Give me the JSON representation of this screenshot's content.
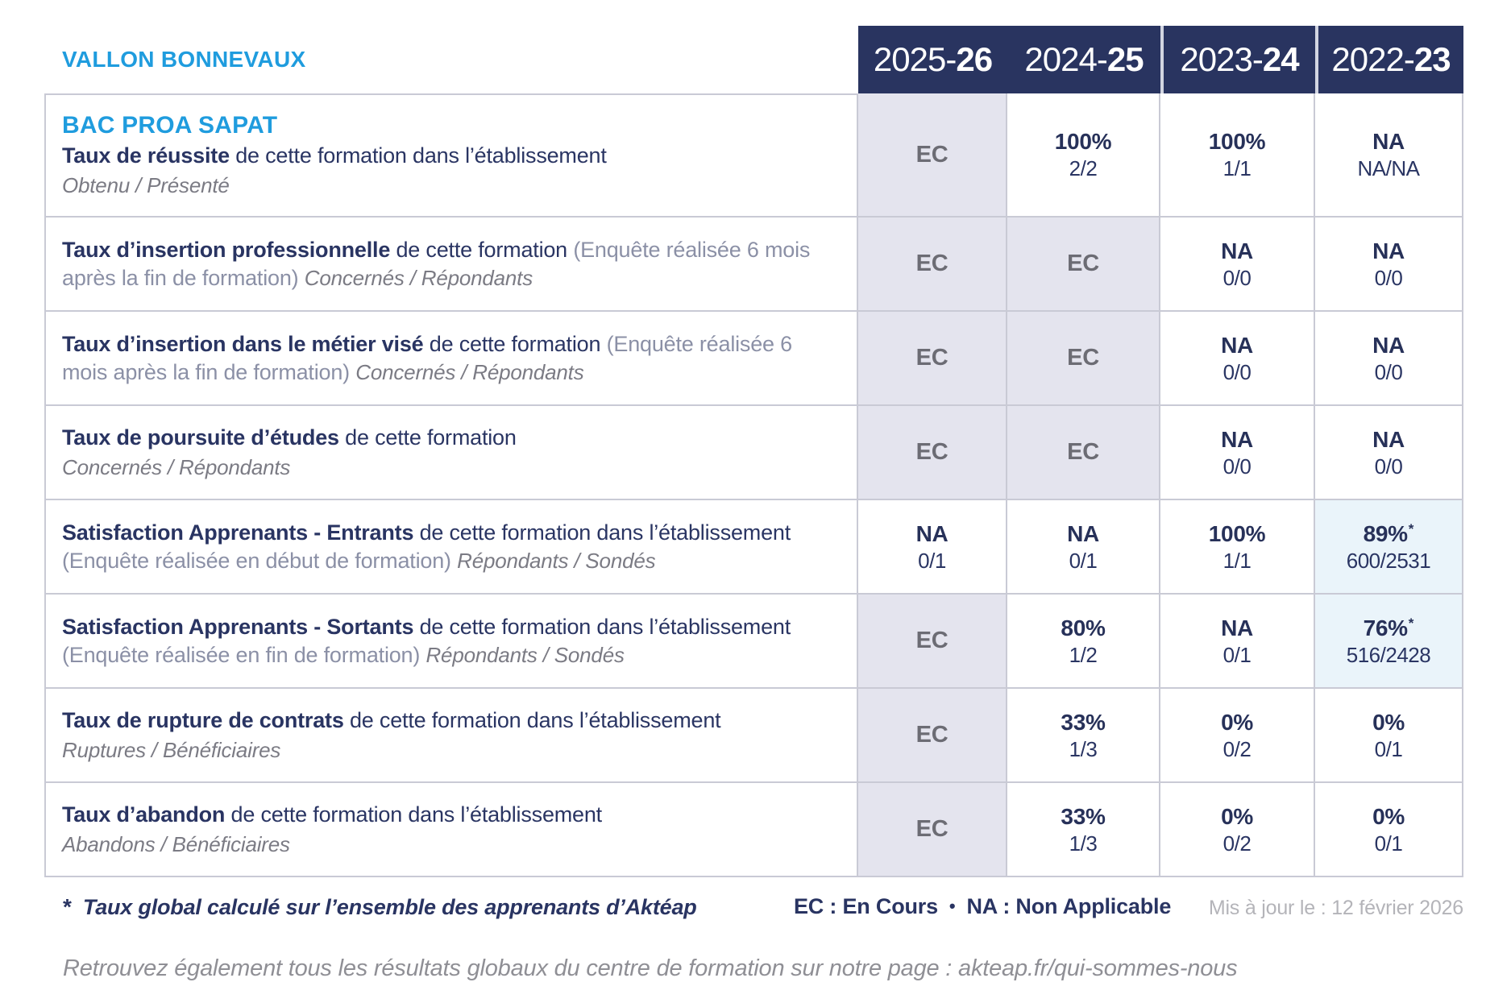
{
  "brand": {
    "site_name": "VALLON BONNEVAUX"
  },
  "colors": {
    "accent_blue": "#1F9CDE",
    "header_navy": "#293460",
    "text_navy": "#293462",
    "muted_gray": "#7B7B84",
    "paren_gray_blue": "#8B90A6",
    "ec_cell_bg": "#E4E4EE",
    "highlight_cell_bg": "#EAF4FA",
    "grid_line": "#C9CAD5"
  },
  "table": {
    "star_glyph": "*",
    "years": [
      {
        "prefix": "2025-",
        "suffix": "26"
      },
      {
        "prefix": "2024-",
        "suffix": "25"
      },
      {
        "prefix": "2023-",
        "suffix": "24"
      },
      {
        "prefix": "2022-",
        "suffix": "23"
      }
    ],
    "rows": [
      {
        "program": "BAC PROA SAPAT",
        "title": "Taux de réussite",
        "desc": "de cette formation dans l’établissement",
        "paren": "",
        "sub": "Obtenu / Présenté",
        "sub_newline": true,
        "cells": [
          {
            "main": "EC",
            "frac": "",
            "type": "ec",
            "star": false
          },
          {
            "main": "100%",
            "frac": "2/2",
            "type": "",
            "star": false
          },
          {
            "main": "100%",
            "frac": "1/1",
            "type": "",
            "star": false
          },
          {
            "main": "NA",
            "frac": "NA/NA",
            "type": "",
            "star": false
          }
        ]
      },
      {
        "program": "",
        "title": "Taux d’insertion professionnelle",
        "desc": "de cette formation",
        "paren": "(Enquête réalisée 6 mois après la fin de formation)",
        "sub": "Concernés / Répondants",
        "sub_newline": false,
        "cells": [
          {
            "main": "EC",
            "frac": "",
            "type": "ec",
            "star": false
          },
          {
            "main": "EC",
            "frac": "",
            "type": "ec",
            "star": false
          },
          {
            "main": "NA",
            "frac": "0/0",
            "type": "",
            "star": false
          },
          {
            "main": "NA",
            "frac": "0/0",
            "type": "",
            "star": false
          }
        ]
      },
      {
        "program": "",
        "title": "Taux d’insertion dans le métier visé",
        "desc": "de cette formation",
        "paren": "(Enquête réalisée 6 mois après la fin de formation)",
        "sub": "Concernés / Répondants",
        "sub_newline": false,
        "cells": [
          {
            "main": "EC",
            "frac": "",
            "type": "ec",
            "star": false
          },
          {
            "main": "EC",
            "frac": "",
            "type": "ec",
            "star": false
          },
          {
            "main": "NA",
            "frac": "0/0",
            "type": "",
            "star": false
          },
          {
            "main": "NA",
            "frac": "0/0",
            "type": "",
            "star": false
          }
        ]
      },
      {
        "program": "",
        "title": "Taux de poursuite d’études",
        "desc": "de cette formation",
        "paren": "",
        "sub": "Concernés / Répondants",
        "sub_newline": true,
        "cells": [
          {
            "main": "EC",
            "frac": "",
            "type": "ec",
            "star": false
          },
          {
            "main": "EC",
            "frac": "",
            "type": "ec",
            "star": false
          },
          {
            "main": "NA",
            "frac": "0/0",
            "type": "",
            "star": false
          },
          {
            "main": "NA",
            "frac": "0/0",
            "type": "",
            "star": false
          }
        ]
      },
      {
        "program": "",
        "title": "Satisfaction Apprenants - Entrants",
        "desc": "de cette formation dans l’établissement",
        "paren": "(Enquête réalisée en début de formation)",
        "sub": "Répondants / Sondés",
        "sub_newline": false,
        "cells": [
          {
            "main": "NA",
            "frac": "0/1",
            "type": "",
            "star": false
          },
          {
            "main": "NA",
            "frac": "0/1",
            "type": "",
            "star": false
          },
          {
            "main": "100%",
            "frac": "1/1",
            "type": "",
            "star": false
          },
          {
            "main": "89%",
            "frac": "600/2531",
            "type": "highlight",
            "star": true
          }
        ]
      },
      {
        "program": "",
        "title": "Satisfaction Apprenants - Sortants",
        "desc": "de cette formation dans l’établissement",
        "paren": "(Enquête réalisée en fin de formation)",
        "sub": "Répondants / Sondés",
        "sub_newline": false,
        "cells": [
          {
            "main": "EC",
            "frac": "",
            "type": "ec",
            "star": false
          },
          {
            "main": "80%",
            "frac": "1/2",
            "type": "",
            "star": false
          },
          {
            "main": "NA",
            "frac": "0/1",
            "type": "",
            "star": false
          },
          {
            "main": "76%",
            "frac": "516/2428",
            "type": "highlight",
            "star": true
          }
        ]
      },
      {
        "program": "",
        "title": "Taux de rupture de contrats",
        "desc": "de cette formation dans l’établissement",
        "paren": "",
        "sub": "Ruptures / Bénéficiaires",
        "sub_newline": true,
        "cells": [
          {
            "main": "EC",
            "frac": "",
            "type": "ec",
            "star": false
          },
          {
            "main": "33%",
            "frac": "1/3",
            "type": "",
            "star": false
          },
          {
            "main": "0%",
            "frac": "0/2",
            "type": "",
            "star": false
          },
          {
            "main": "0%",
            "frac": "0/1",
            "type": "",
            "star": false
          }
        ]
      },
      {
        "program": "",
        "title": "Taux d’abandon",
        "desc": "de cette formation dans l’établissement",
        "paren": "",
        "sub": "Abandons / Bénéficiaires",
        "sub_newline": true,
        "cells": [
          {
            "main": "EC",
            "frac": "",
            "type": "ec",
            "star": false
          },
          {
            "main": "33%",
            "frac": "1/3",
            "type": "",
            "star": false
          },
          {
            "main": "0%",
            "frac": "0/2",
            "type": "",
            "star": false
          },
          {
            "main": "0%",
            "frac": "0/1",
            "type": "",
            "star": false
          }
        ]
      }
    ]
  },
  "footer": {
    "asterisk": "*",
    "note": "Taux global calculé sur l’ensemble des apprenants d’Aktéap",
    "legend_ec": "EC : En Cours",
    "legend_bullet": "•",
    "legend_na": "NA : Non Applicable",
    "updated": "Mis à jour le : 12 février 2026",
    "bottom": "Retrouvez également tous les résultats globaux du centre de formation sur notre page : akteap.fr/qui-sommes-nous"
  }
}
